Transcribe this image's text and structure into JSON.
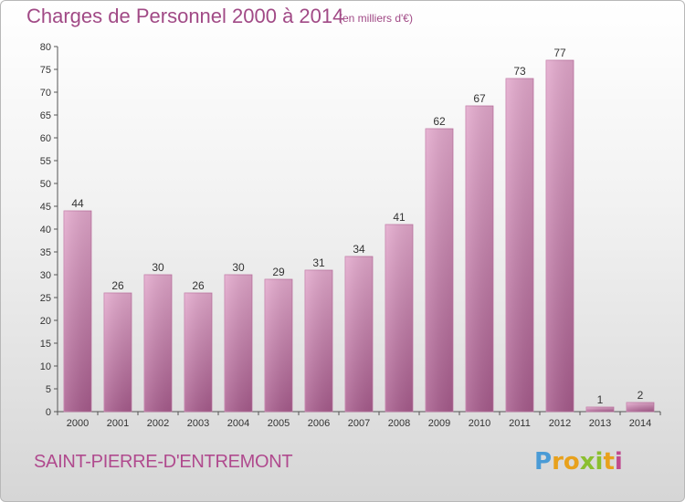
{
  "header": {
    "title": "Charges de Personnel 2000 à 2014",
    "subtitle": "(en milliers d'€)"
  },
  "footer": {
    "commune": "SAINT-PIERRE-D'ENTREMONT",
    "logo_letters": [
      "P",
      "r",
      "o",
      "x",
      "i",
      "t",
      "i"
    ],
    "logo_colors": [
      "#4a9bd6",
      "#e8a11c",
      "#e8a11c",
      "#8bbf2f",
      "#8bbf2f",
      "#e8a11c",
      "#c04a8e"
    ]
  },
  "chart_data": {
    "type": "bar",
    "categories": [
      "2000",
      "2001",
      "2002",
      "2003",
      "2004",
      "2005",
      "2006",
      "2007",
      "2008",
      "2009",
      "2010",
      "2011",
      "2012",
      "2013",
      "2014"
    ],
    "values": [
      44,
      26,
      30,
      26,
      30,
      29,
      31,
      34,
      41,
      62,
      67,
      73,
      77,
      1,
      2
    ],
    "data_labels": [
      "44",
      "26",
      "30",
      "26",
      "30",
      "29",
      "31",
      "34",
      "41",
      "62",
      "67",
      "73",
      "77",
      "1",
      "2"
    ],
    "y_ticks": [
      "0",
      "5",
      "10",
      "15",
      "20",
      "25",
      "30",
      "35",
      "40",
      "45",
      "50",
      "55",
      "60",
      "65",
      "70",
      "75",
      "80"
    ],
    "ylim": [
      0,
      80
    ],
    "grid": false,
    "bar_color": "#d58fbb"
  }
}
